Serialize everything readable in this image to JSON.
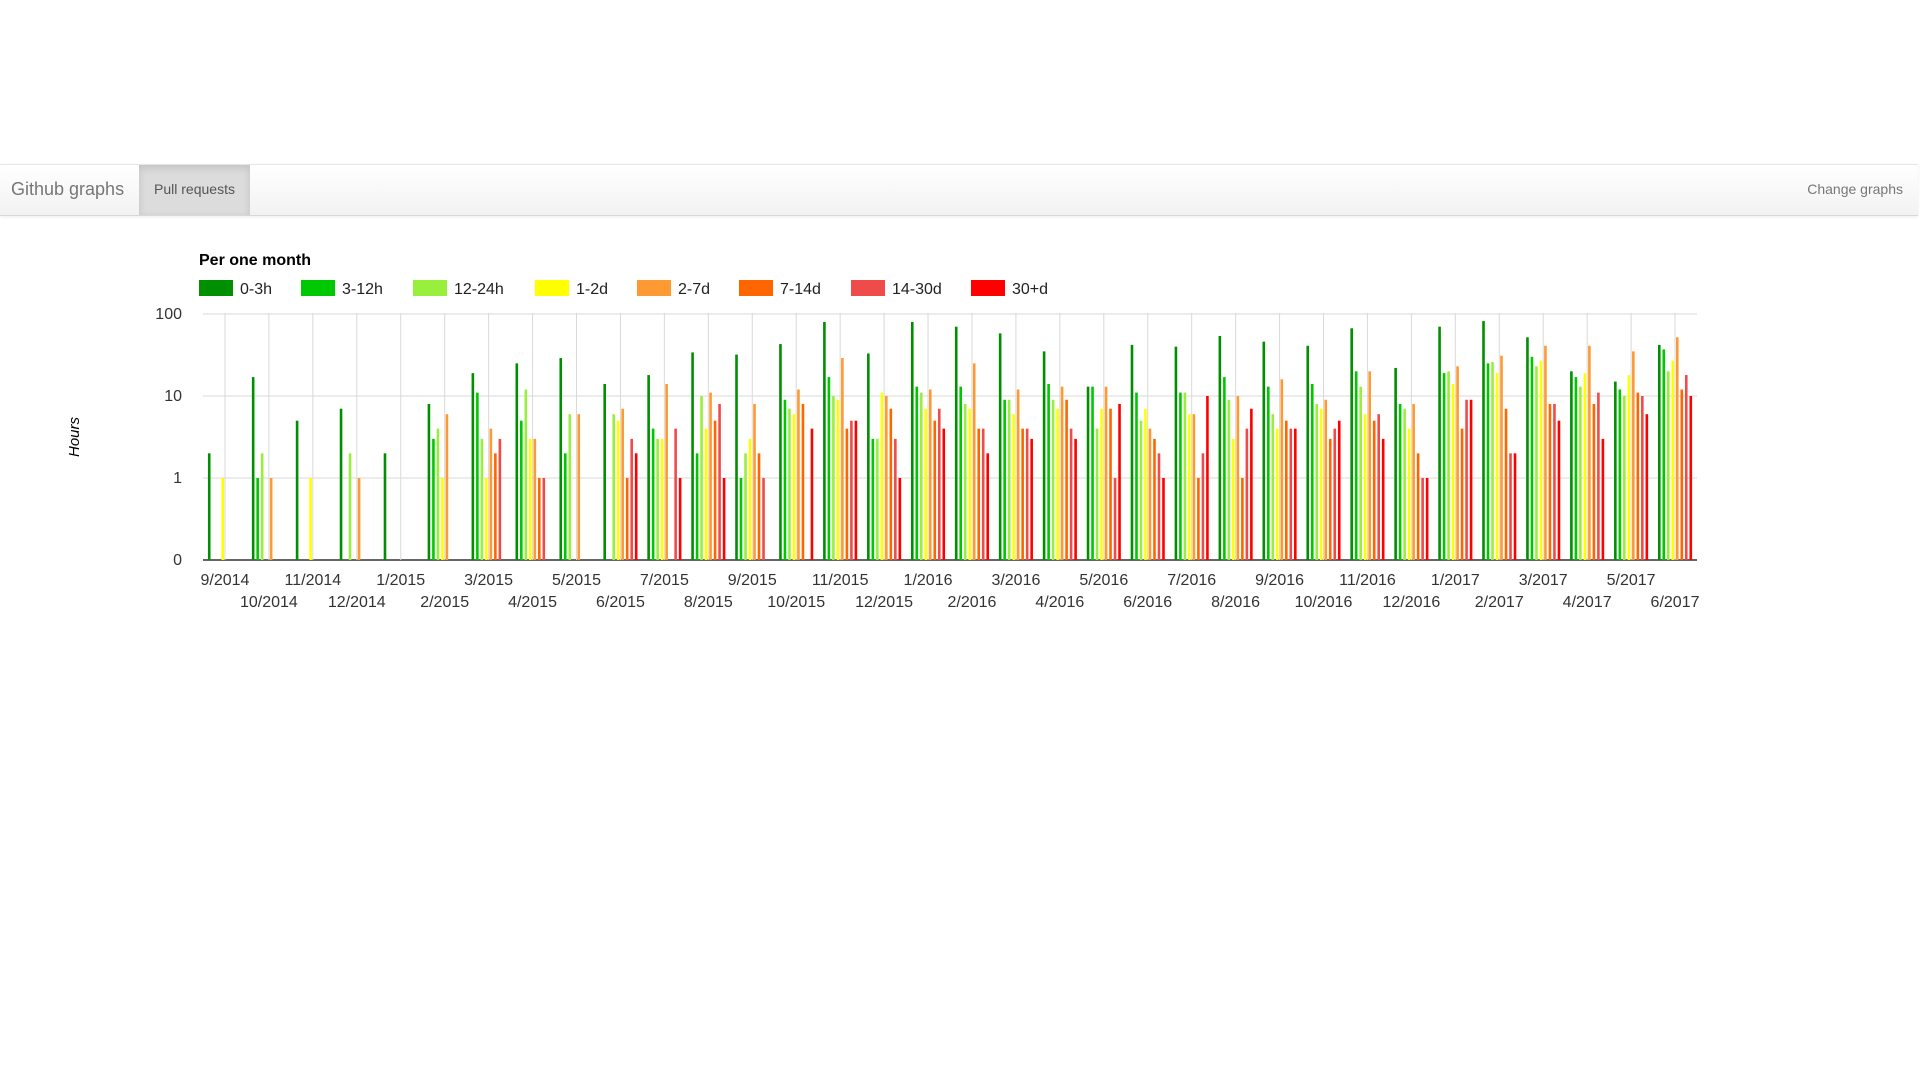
{
  "navbar": {
    "brand": "Github graphs",
    "tab_label": "Pull requests",
    "right_link": "Change graphs"
  },
  "colors": {
    "navbar_background": "#f5f5f5",
    "active_tab_background": "#dcdcdc",
    "grid": "#d9d9d9"
  },
  "chart_data": {
    "type": "bar",
    "title": "Per one month",
    "ylabel": "Hours",
    "xlabel": "",
    "y_scale": "log",
    "ylim": [
      0,
      100
    ],
    "y_ticks": [
      {
        "value": 0,
        "label": "0"
      },
      {
        "value": 1,
        "label": "1"
      },
      {
        "value": 10,
        "label": "10"
      },
      {
        "value": 100,
        "label": "100"
      }
    ],
    "grid": true,
    "legend_position": "top-left",
    "categories": [
      "9/2014",
      "10/2014",
      "11/2014",
      "12/2014",
      "1/2015",
      "2/2015",
      "3/2015",
      "4/2015",
      "5/2015",
      "6/2015",
      "7/2015",
      "8/2015",
      "9/2015",
      "10/2015",
      "11/2015",
      "12/2015",
      "1/2016",
      "2/2016",
      "3/2016",
      "4/2016",
      "5/2016",
      "6/2016",
      "7/2016",
      "8/2016",
      "9/2016",
      "10/2016",
      "11/2016",
      "12/2016",
      "1/2017",
      "2/2017",
      "3/2017",
      "4/2017",
      "5/2017",
      "6/2017"
    ],
    "series": [
      {
        "name": "0-3h",
        "color": "#008f00",
        "values": [
          2,
          17,
          5,
          7,
          2,
          8,
          19,
          25,
          29,
          14,
          18,
          34,
          32,
          43,
          80,
          33,
          80,
          70,
          58,
          35,
          13,
          42,
          40,
          54,
          46,
          41,
          67,
          22,
          70,
          82,
          52,
          20,
          15,
          42
        ]
      },
      {
        "name": "3-12h",
        "color": "#00c800",
        "values": [
          0,
          1,
          0,
          0,
          0,
          3,
          11,
          5,
          2,
          0,
          4,
          2,
          1,
          9,
          17,
          3,
          13,
          13,
          9,
          14,
          13,
          11,
          11,
          17,
          13,
          14,
          20,
          8,
          19,
          25,
          30,
          17,
          12,
          37
        ]
      },
      {
        "name": "12-24h",
        "color": "#99f03c",
        "values": [
          0,
          2,
          0,
          2,
          0,
          4,
          3,
          12,
          6,
          6,
          3,
          10,
          2,
          7,
          10,
          3,
          11,
          8,
          9,
          9,
          4,
          5,
          11,
          9,
          6,
          8,
          13,
          7,
          20,
          26,
          23,
          13,
          10,
          20
        ]
      },
      {
        "name": "1-2d",
        "color": "#ffff00",
        "values": [
          1,
          0,
          1,
          0,
          0,
          1,
          1,
          3,
          0,
          5,
          3,
          4,
          3,
          6,
          9,
          11,
          7,
          7,
          6,
          7,
          7,
          7,
          6,
          3,
          4,
          7,
          6,
          4,
          14,
          19,
          27,
          19,
          18,
          27
        ]
      },
      {
        "name": "2-7d",
        "color": "#ff9933",
        "values": [
          0,
          1,
          0,
          1,
          0,
          6,
          4,
          3,
          6,
          7,
          14,
          11,
          8,
          12,
          29,
          10,
          12,
          25,
          12,
          13,
          13,
          4,
          6,
          10,
          16,
          9,
          20,
          8,
          23,
          31,
          41,
          41,
          35,
          52
        ]
      },
      {
        "name": "7-14d",
        "color": "#ff6600",
        "values": [
          0,
          0,
          0,
          0,
          0,
          0,
          2,
          1,
          0,
          1,
          0,
          5,
          2,
          8,
          4,
          7,
          5,
          4,
          4,
          9,
          7,
          3,
          1,
          1,
          5,
          3,
          5,
          2,
          4,
          7,
          8,
          8,
          11,
          12
        ]
      },
      {
        "name": "14-30d",
        "color": "#f04b4b",
        "values": [
          0,
          0,
          0,
          0,
          0,
          0,
          3,
          1,
          0,
          3,
          4,
          8,
          1,
          0,
          5,
          3,
          7,
          4,
          4,
          4,
          1,
          2,
          2,
          4,
          4,
          4,
          6,
          1,
          9,
          2,
          8,
          11,
          10,
          18
        ]
      },
      {
        "name": "30+d",
        "color": "#ff0000",
        "values": [
          0,
          0,
          0,
          0,
          0,
          0,
          0,
          0,
          0,
          2,
          1,
          1,
          0,
          4,
          5,
          1,
          4,
          2,
          3,
          3,
          8,
          1,
          10,
          7,
          4,
          5,
          3,
          1,
          9,
          2,
          5,
          3,
          6,
          10
        ]
      }
    ]
  }
}
